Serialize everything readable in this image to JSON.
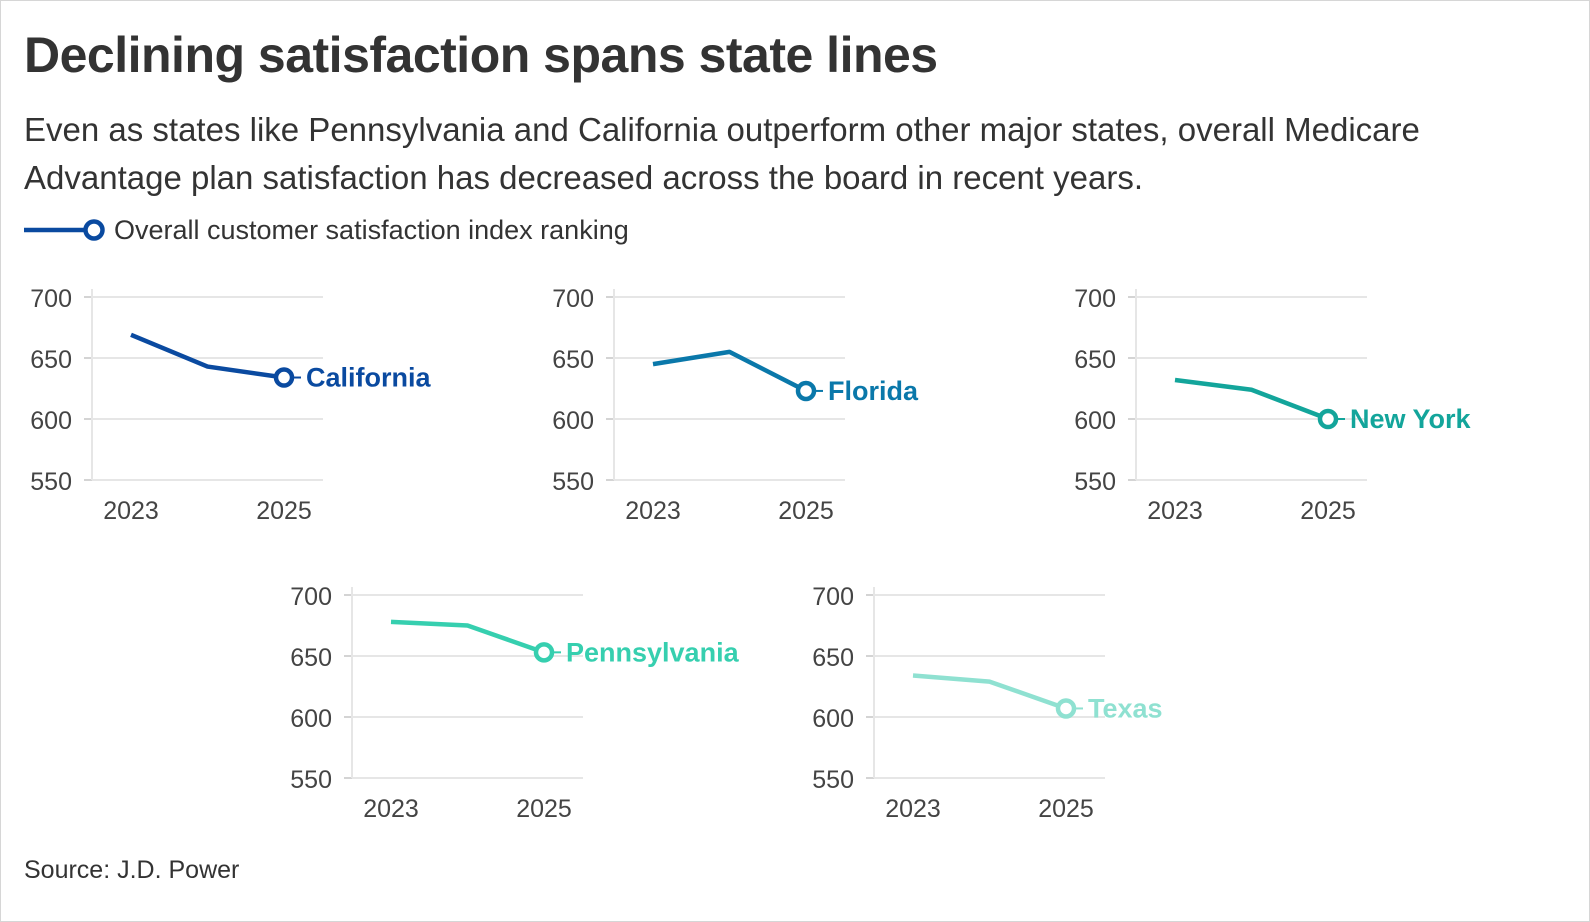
{
  "title": "Declining satisfaction spans state lines",
  "subtitle": "Even as states like Pennsylvania and California outperform other major states, overall Medicare Advantage plan satisfaction has decreased across the board in recent years.",
  "legend": {
    "label": "Overall customer satisfaction index ranking",
    "color": "#0a4aa0"
  },
  "source": "Source: J.D. Power",
  "chart_data": [
    {
      "type": "line",
      "state": "California",
      "color": "#0a4aa0",
      "x": [
        2023,
        2024,
        2025
      ],
      "x_tick_labels": [
        "2023",
        "2025"
      ],
      "y": [
        669,
        643,
        634
      ],
      "y_ticks": [
        700,
        650,
        600,
        550
      ],
      "ylim": [
        550,
        700
      ],
      "grid": true
    },
    {
      "type": "line",
      "state": "Florida",
      "color": "#0a78aa",
      "x": [
        2023,
        2024,
        2025
      ],
      "x_tick_labels": [
        "2023",
        "2025"
      ],
      "y": [
        645,
        655,
        623
      ],
      "y_ticks": [
        700,
        650,
        600,
        550
      ],
      "ylim": [
        550,
        700
      ],
      "grid": true
    },
    {
      "type": "line",
      "state": "New York",
      "color": "#13a59b",
      "x": [
        2023,
        2024,
        2025
      ],
      "x_tick_labels": [
        "2023",
        "2025"
      ],
      "y": [
        632,
        624,
        600
      ],
      "y_ticks": [
        700,
        650,
        600,
        550
      ],
      "ylim": [
        550,
        700
      ],
      "grid": true
    },
    {
      "type": "line",
      "state": "Pennsylvania",
      "color": "#36cfaf",
      "x": [
        2023,
        2024,
        2025
      ],
      "x_tick_labels": [
        "2023",
        "2025"
      ],
      "y": [
        678,
        675,
        653
      ],
      "y_ticks": [
        700,
        650,
        600,
        550
      ],
      "ylim": [
        550,
        700
      ],
      "grid": true
    },
    {
      "type": "line",
      "state": "Texas",
      "color": "#8fe1d1",
      "x": [
        2023,
        2024,
        2025
      ],
      "x_tick_labels": [
        "2023",
        "2025"
      ],
      "y": [
        634,
        629,
        607
      ],
      "y_ticks": [
        700,
        650,
        600,
        550
      ],
      "ylim": [
        550,
        700
      ],
      "grid": true
    }
  ]
}
